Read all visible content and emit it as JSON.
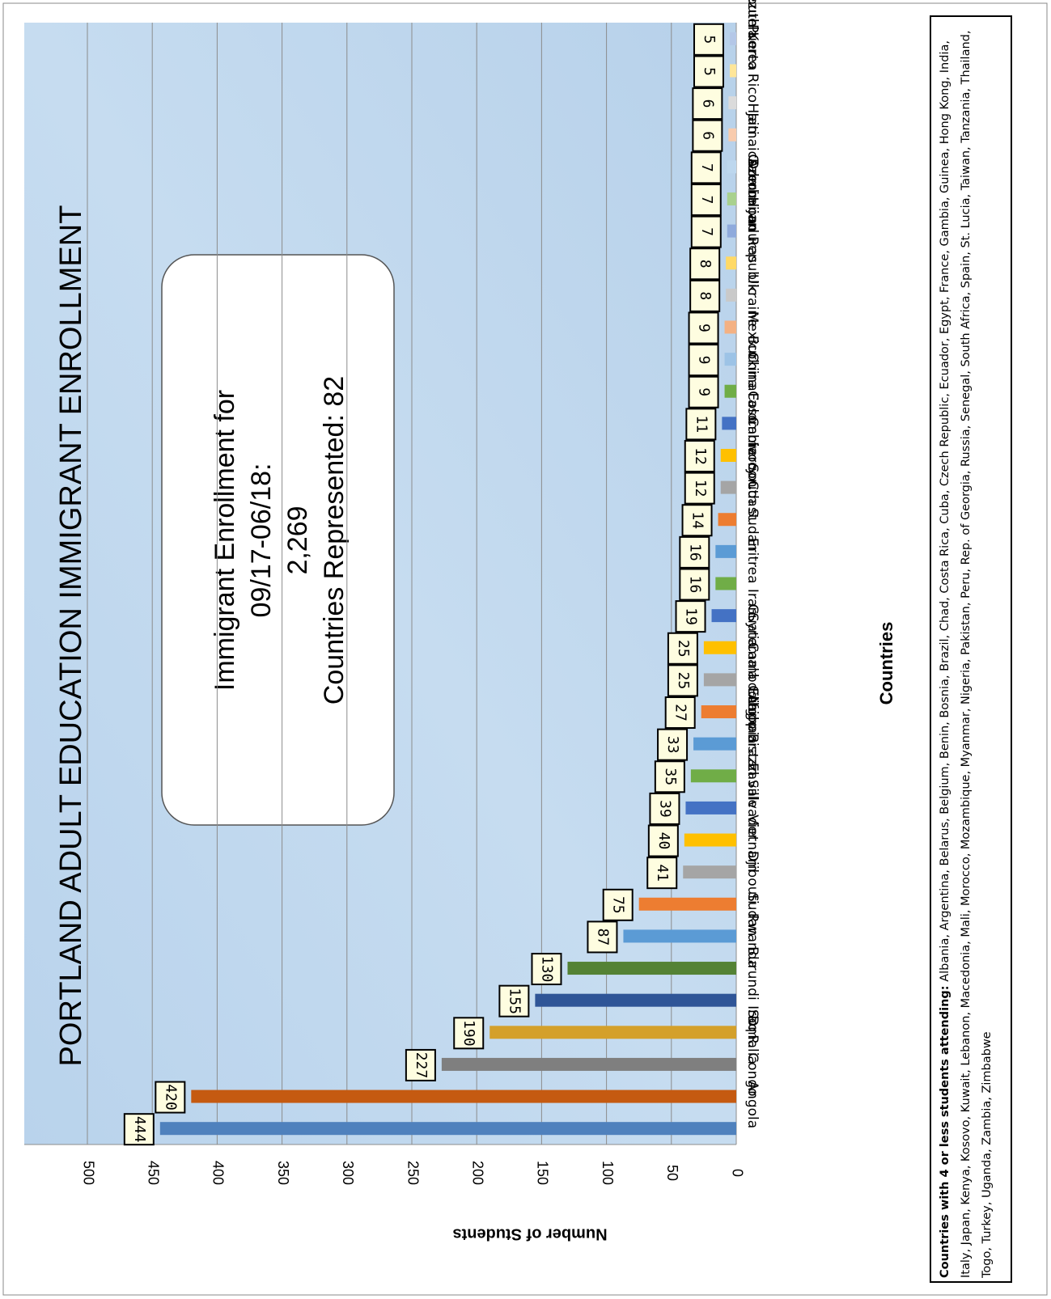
{
  "chart_data": {
    "type": "bar",
    "title": "PORTLAND ADULT EDUCATION IMMIGRANT ENROLLMENT",
    "categories": [
      "Angola",
      "D. R. Congo",
      "Somalia",
      "Iraq",
      "Burundi",
      "Rwanda",
      "Sudan",
      "Djibouti",
      "Vietnam",
      "El Salvador",
      "Congo Brazzaville",
      "Afghanistan",
      "Ethiopia",
      "Cambodia",
      "Guatemala",
      "Syria",
      "Iran",
      "Eritrea",
      "South Sudan",
      "Ivory Coast",
      "Cameroon",
      "Colombia",
      "Burkina Faso",
      "China",
      "Mexico",
      "Ukraine",
      "Dominican Republic",
      "Honduras",
      "Azerbaijan",
      "Gabon",
      "Jamaica",
      "Haiti",
      "Puerto Rico",
      "South Korea",
      "Venezuela"
    ],
    "values": [
      444,
      420,
      227,
      190,
      155,
      130,
      87,
      75,
      41,
      40,
      39,
      35,
      33,
      27,
      25,
      25,
      19,
      16,
      16,
      14,
      12,
      12,
      11,
      9,
      9,
      9,
      8,
      8,
      7,
      7,
      7,
      6,
      6,
      5,
      5
    ],
    "colors": [
      "#4f81bd",
      "#c55a11",
      "#7f7f7f",
      "#d4a02a",
      "#2f5597",
      "#548235",
      "#5b9bd5",
      "#ed7d31",
      "#a5a5a5",
      "#ffc000",
      "#4472c4",
      "#70ad47",
      "#5b9bd5",
      "#ed7d31",
      "#a5a5a5",
      "#ffc000",
      "#4472c4",
      "#70ad47",
      "#5b9bd5",
      "#ed7d31",
      "#a5a5a5",
      "#ffc000",
      "#4472c4",
      "#70ad47",
      "#9dc3e6",
      "#f4b183",
      "#c9c9c9",
      "#ffd966",
      "#8faadc",
      "#a9d18e",
      "#bdd7ee",
      "#f8cbad",
      "#dbdbdb",
      "#ffe699",
      "#b4c7e7"
    ],
    "ylim": [
      0,
      500
    ],
    "yticks": [
      0,
      50,
      100,
      150,
      200,
      250,
      300,
      350,
      400,
      450,
      500
    ],
    "grid": true,
    "x_label": "Countries",
    "y_label": "Number of Students",
    "annotation": [
      "Immigrant Enrollment for",
      "09/17-06/18:",
      "2,269",
      "Countries Represented: 82"
    ],
    "footnote": {
      "label": "Countries with 4 or less students attending:",
      "text": "Albania, Argentina, Belarus, Belgium, Benin, Bosnia, Brazil, Chad, Costa Rica, Cuba, Czech Republic, Ecuador, Egypt, France, Gambia, Guinea, Hong Kong, India, Italy, Japan, Kenya, Kosovo, Kuwait, Lebanon, Macedonia, Mali, Morocco, Mozambique, Myanmar, Nigeria, Pakistan, Peru, Rep. of Georgia, Russia, Senegal, South Africa, Spain, St. Lucia, Taiwan, Tanzania, Thailand, Togo, Turkey, Uganda, Zambia, Zimbabwe"
    }
  }
}
